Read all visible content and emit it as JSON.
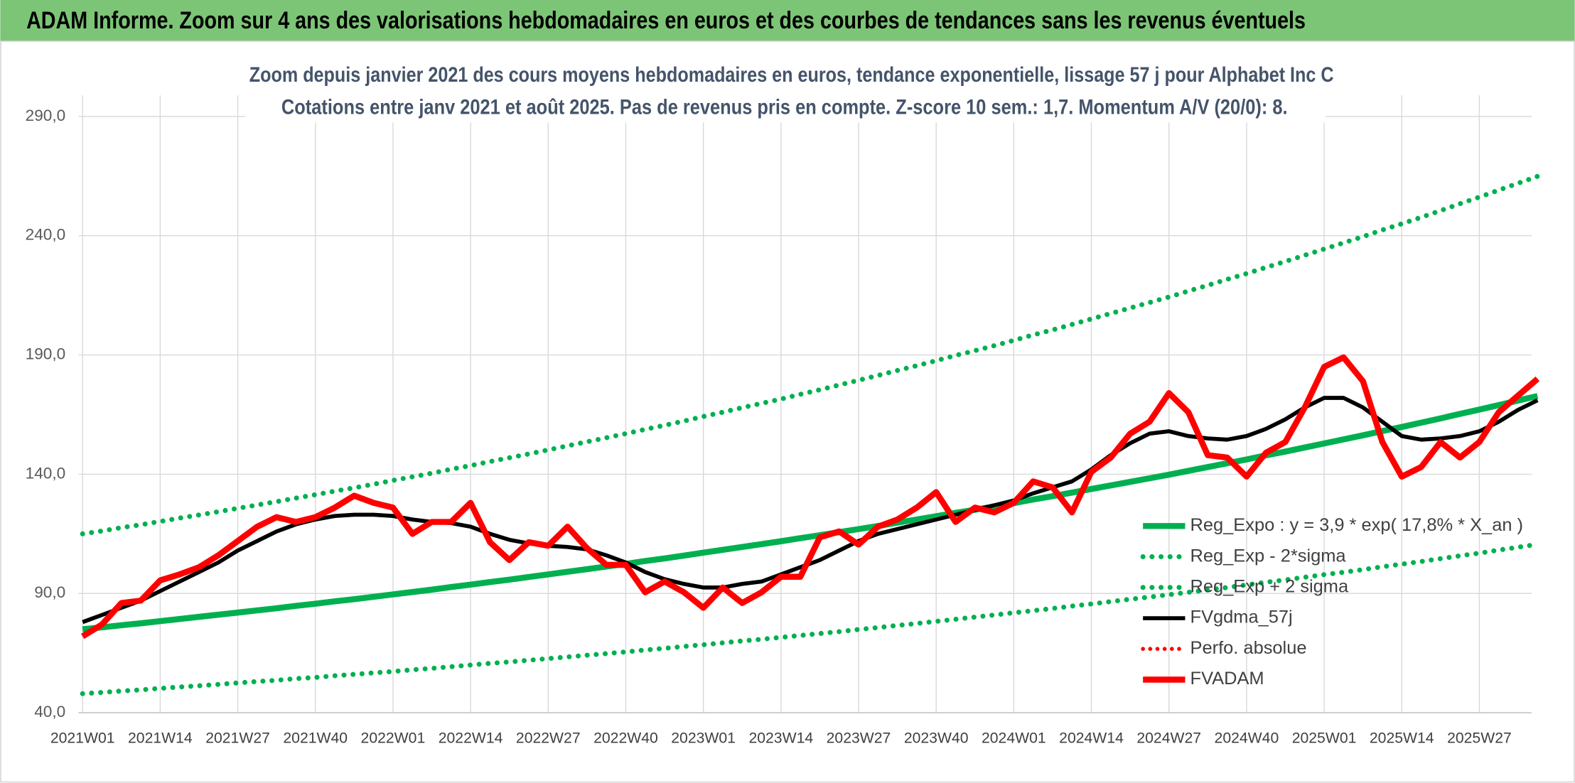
{
  "page_title": "ADAM Informe. Zoom sur 4 ans des valorisations hebdomadaires en euros et des courbes de tendances sans les revenus éventuels",
  "chart_data": {
    "type": "line",
    "title": "Zoom depuis janvier 2021 des cours moyens hebdomadaires en euros, tendance exponentielle, lissage 57 j pour Alphabet Inc C",
    "subtitle": "Cotations entre janv 2021 et août 2025. Pas de revenus pris en compte. Z-score 10 sem.: 1,7. Momentum A/V (20/0): 8.",
    "categories": [
      "2021W01",
      null,
      null,
      null,
      "2021W14",
      null,
      null,
      null,
      "2021W27",
      null,
      null,
      null,
      "2021W40",
      null,
      null,
      null,
      "2022W01",
      null,
      null,
      null,
      "2022W14",
      null,
      null,
      null,
      "2022W27",
      null,
      null,
      null,
      "2022W40",
      null,
      null,
      null,
      "2023W01",
      null,
      null,
      null,
      "2023W14",
      null,
      null,
      null,
      "2023W27",
      null,
      null,
      null,
      "2023W40",
      null,
      null,
      null,
      "2024W01",
      null,
      null,
      null,
      "2024W14",
      null,
      null,
      null,
      "2024W27",
      null,
      null,
      null,
      "2024W40",
      null,
      null,
      null,
      "2025W01",
      null,
      null,
      null,
      "2025W14",
      null,
      null,
      null,
      "2025W27",
      null,
      null,
      null
    ],
    "ylim": [
      40,
      290
    ],
    "yticks": [
      {
        "value": 40,
        "label": "40,0"
      },
      {
        "value": 90,
        "label": "90,0"
      },
      {
        "value": 140,
        "label": "140,0"
      },
      {
        "value": 190,
        "label": "190,0"
      },
      {
        "value": 240,
        "label": "240,0"
      },
      {
        "value": 290,
        "label": "290,0"
      }
    ],
    "grid": true,
    "legend": "lower right",
    "series": [
      {
        "name": "Reg_Expo : y = 3,9 * exp( 17,8% *  X_an )",
        "color": "#00b050",
        "style": "solid",
        "width": 6,
        "values": [
          75.0,
          75.8,
          76.7,
          77.5,
          78.4,
          79.3,
          80.2,
          81.1,
          82.0,
          82.9,
          83.8,
          84.8,
          85.7,
          86.7,
          87.6,
          88.6,
          89.6,
          90.6,
          91.6,
          92.7,
          93.7,
          94.8,
          95.8,
          96.9,
          98.0,
          99.1,
          100.2,
          101.3,
          102.4,
          103.6,
          104.7,
          105.9,
          107.1,
          108.3,
          109.5,
          110.7,
          111.9,
          113.2,
          114.4,
          115.7,
          117.0,
          118.3,
          119.7,
          121.0,
          122.4,
          123.8,
          125.1,
          126.5,
          127.9,
          129.4,
          130.8,
          132.3,
          133.8,
          135.3,
          136.8,
          138.3,
          139.8,
          141.4,
          143.0,
          144.6,
          146.2,
          147.9,
          149.5,
          151.2,
          152.9,
          154.6,
          156.3,
          158.1,
          159.8,
          161.6,
          163.4,
          165.3,
          167.1,
          169.0,
          170.9,
          172.8
        ]
      },
      {
        "name": "Reg_Exp - 2*sigma",
        "color": "#00b050",
        "style": "dotted",
        "width": 5,
        "values": [
          48.0,
          48.5,
          49.1,
          49.6,
          50.2,
          50.8,
          51.3,
          51.9,
          52.5,
          53.1,
          53.6,
          54.3,
          54.8,
          55.5,
          56.1,
          56.7,
          57.3,
          58.0,
          58.6,
          59.3,
          60.0,
          60.7,
          61.3,
          62.0,
          62.7,
          63.4,
          64.1,
          64.8,
          65.5,
          66.3,
          67.0,
          67.8,
          68.5,
          69.3,
          70.1,
          70.8,
          71.6,
          72.4,
          73.2,
          74.0,
          74.9,
          75.7,
          76.6,
          77.4,
          78.3,
          79.2,
          80.1,
          81.0,
          81.9,
          82.8,
          83.7,
          84.7,
          85.6,
          86.6,
          87.6,
          88.5,
          89.5,
          90.5,
          91.5,
          92.5,
          93.6,
          94.7,
          95.7,
          96.8,
          97.9,
          98.9,
          100.0,
          101.2,
          102.3,
          103.4,
          104.6,
          105.8,
          106.9,
          108.2,
          109.4,
          110.6
        ]
      },
      {
        "name": "Reg_Exp + 2 sigma",
        "color": "#00b050",
        "style": "dotted",
        "width": 5,
        "values": [
          115.0,
          116.2,
          117.6,
          118.8,
          120.2,
          121.6,
          122.9,
          124.3,
          125.7,
          127.1,
          128.5,
          130.0,
          131.4,
          132.9,
          134.3,
          135.8,
          137.4,
          138.9,
          140.4,
          142.1,
          143.6,
          145.3,
          146.9,
          148.5,
          150.2,
          151.9,
          153.6,
          155.3,
          157.0,
          158.8,
          160.5,
          162.3,
          164.2,
          166.0,
          167.9,
          169.7,
          171.5,
          173.5,
          175.4,
          177.4,
          179.4,
          181.4,
          183.5,
          185.5,
          187.6,
          189.8,
          191.8,
          193.9,
          196.1,
          198.4,
          200.5,
          202.8,
          205.1,
          207.4,
          209.7,
          212.0,
          214.3,
          216.8,
          219.2,
          221.7,
          224.1,
          226.7,
          229.2,
          231.8,
          234.4,
          237.0,
          239.6,
          242.4,
          245.0,
          247.7,
          250.5,
          253.4,
          256.2,
          259.1,
          262.0,
          264.9
        ]
      },
      {
        "name": "FVgdma_57j",
        "color": "#000000",
        "style": "solid",
        "width": 4,
        "values": [
          78,
          81,
          84,
          87,
          91,
          95,
          99,
          103,
          108,
          112,
          116,
          119,
          121,
          122.5,
          123,
          123,
          122.5,
          121,
          120,
          119.5,
          118,
          115,
          112.5,
          111,
          110,
          109.5,
          108.5,
          106,
          103,
          99,
          96,
          94,
          92.5,
          92.5,
          94,
          95,
          98,
          101,
          104,
          108,
          112,
          115,
          117,
          119,
          121,
          123,
          125,
          127,
          129,
          132,
          134.5,
          137,
          142,
          148,
          153,
          157,
          158,
          156,
          155,
          154.5,
          156,
          159,
          163,
          168,
          172,
          172,
          168,
          162,
          156,
          154.5,
          155,
          156,
          158,
          162,
          167,
          171
        ]
      },
      {
        "name": "Perfo. absolue",
        "color": "#ff0000",
        "style": "dotted",
        "width": 4,
        "values": [
          null,
          null,
          null,
          null,
          null,
          null,
          null,
          null,
          null,
          null,
          null,
          null,
          null,
          null,
          null,
          null,
          null,
          null,
          null,
          null,
          null,
          null,
          null,
          null,
          null,
          null,
          null,
          null,
          null,
          null,
          null,
          null,
          null,
          null,
          null,
          null,
          null,
          null,
          null,
          null,
          null,
          null,
          null,
          null,
          null,
          null,
          null,
          null,
          null,
          null,
          null,
          null,
          null,
          null,
          null,
          null,
          null,
          null,
          null,
          null,
          null,
          null,
          null,
          null,
          null,
          null,
          null,
          null,
          null,
          null,
          null,
          null,
          null,
          null,
          null,
          null
        ]
      },
      {
        "name": "FVADAM",
        "color": "#ff0000",
        "style": "solid",
        "width": 6,
        "values": [
          72,
          77,
          86,
          87,
          95.5,
          98,
          101,
          106,
          112,
          118,
          122,
          120,
          122,
          126,
          131,
          128,
          126,
          115,
          120,
          120,
          128,
          111.5,
          104,
          111.5,
          110,
          118,
          109,
          102,
          102,
          90.5,
          95,
          90.5,
          84,
          92.5,
          86,
          90.5,
          97,
          97,
          113.5,
          116,
          110.5,
          118,
          121,
          126,
          132.5,
          120,
          126,
          124,
          128,
          137,
          134.5,
          124,
          141,
          147,
          157,
          162,
          174,
          166,
          148,
          147,
          139,
          149,
          153.5,
          168,
          185,
          189,
          179,
          153.5,
          139,
          143,
          153.5,
          147,
          153.5,
          166,
          173,
          180
        ]
      }
    ]
  }
}
